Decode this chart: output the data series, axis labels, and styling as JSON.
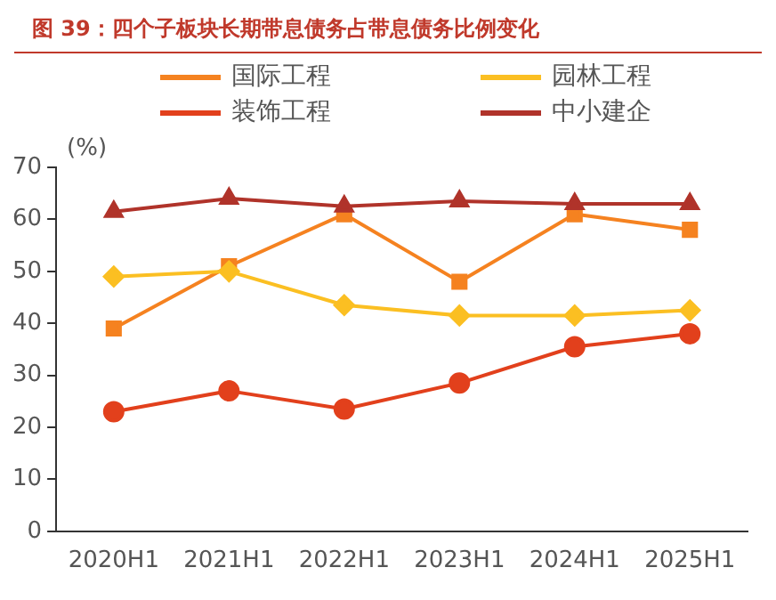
{
  "chart_data": {
    "type": "line",
    "title": "图 39：四个子板块长期带息债务占带息债务比例变化",
    "ylabel": "(%)",
    "categories": [
      "2020H1",
      "2021H1",
      "2022H1",
      "2023H1",
      "2024H1",
      "2025H1"
    ],
    "series": [
      {
        "name": "国际工程",
        "color": "#f58220",
        "marker": "square",
        "values": [
          39,
          51,
          61,
          48,
          61,
          58
        ]
      },
      {
        "name": "园林工程",
        "color": "#fbbf22",
        "marker": "diamond",
        "values": [
          49,
          50,
          43.5,
          41.5,
          41.5,
          42.5
        ]
      },
      {
        "name": "装饰工程",
        "color": "#e2401c",
        "marker": "circle",
        "values": [
          23,
          27,
          23.5,
          28.5,
          35.5,
          38
        ]
      },
      {
        "name": "中小建企",
        "color": "#b0332a",
        "marker": "triangle",
        "values": [
          61.5,
          64,
          62.5,
          63.5,
          63,
          63
        ]
      }
    ],
    "ylim": [
      0,
      70
    ],
    "yticks": [
      0,
      10,
      20,
      30,
      40,
      50,
      60,
      70
    ],
    "grid": false,
    "legend": "top",
    "line_style": "solid"
  }
}
